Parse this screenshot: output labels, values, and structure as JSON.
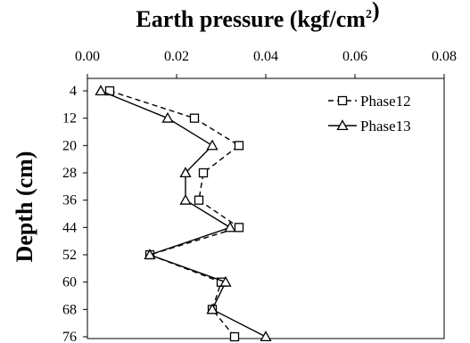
{
  "chart_data": {
    "type": "line",
    "title": "Earth pressure (kgf/cm²)",
    "xlabel": "Earth pressure (kgf/cm²)",
    "ylabel": "Depth (cm)",
    "x_axis_position": "top",
    "y_axis_inverted": true,
    "xlim": [
      0.0,
      0.08
    ],
    "ylim": [
      4,
      76
    ],
    "xticks": [
      "0.00",
      "0.02",
      "0.04",
      "0.06",
      "0.08"
    ],
    "yticks": [
      "4",
      "12",
      "20",
      "28",
      "36",
      "44",
      "52",
      "60",
      "68",
      "76"
    ],
    "depths": [
      4,
      12,
      20,
      28,
      36,
      44,
      52,
      60,
      68,
      76
    ],
    "series": [
      {
        "name": "Phase12",
        "marker": "square",
        "line_style": "dashed",
        "color": "#000000",
        "values": [
          0.005,
          0.024,
          0.034,
          0.026,
          0.025,
          0.034,
          0.014,
          0.03,
          0.028,
          0.033
        ]
      },
      {
        "name": "Phase13",
        "marker": "triangle",
        "line_style": "solid",
        "color": "#000000",
        "values": [
          0.003,
          0.018,
          0.028,
          0.022,
          0.022,
          0.032,
          0.014,
          0.031,
          0.028,
          0.04
        ]
      }
    ],
    "legend_position": "top-right",
    "grid": false
  }
}
